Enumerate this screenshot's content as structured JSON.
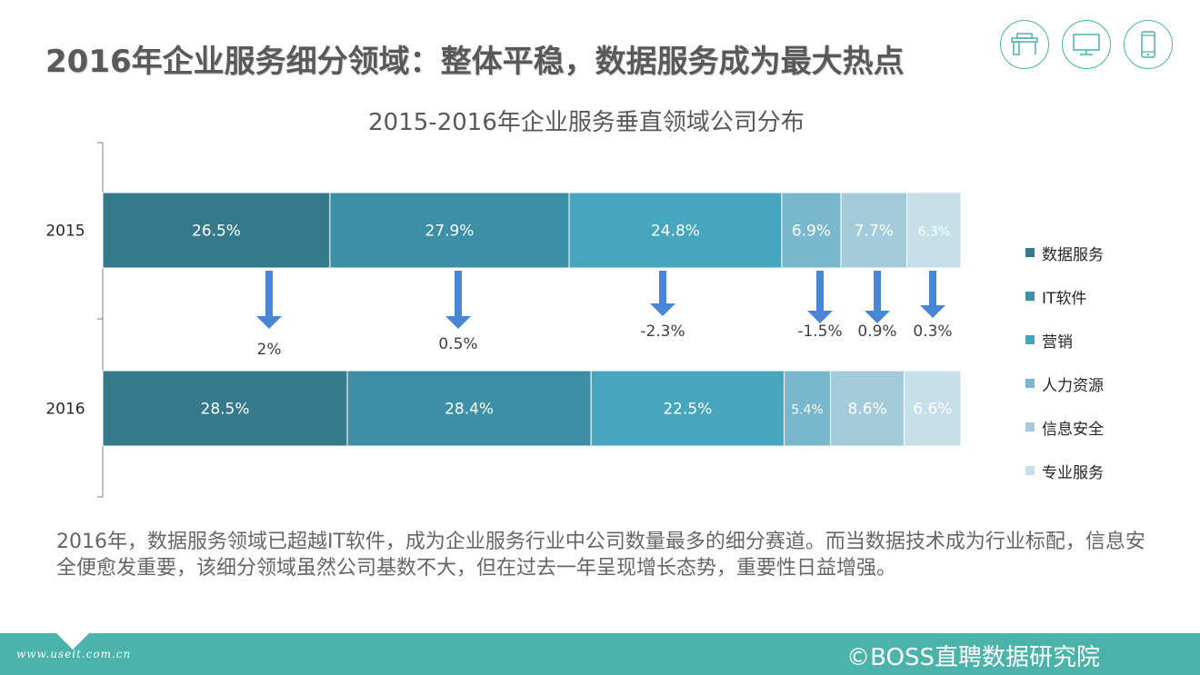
{
  "page": {
    "title": "2016年企业服务细分领域：整体平稳，数据服务成为最大热点",
    "summary": "2016年，数据服务领域已超越IT软件，成为企业服务行业中公司数量最多的细分赛道。而当数据技术成为行业标配，信息安全便愈发重要，该细分领域虽然公司基数不大，但在过去一年呈现增长态势，重要性日益增强。",
    "footer_source": "©BOSS直聘数据研究院",
    "watermark": "www.useit.com.cn",
    "header_icons": [
      "desk-icon",
      "monitor-icon",
      "phone-icon"
    ],
    "accent_color": "#4bb3aa"
  },
  "chart_data": {
    "type": "bar",
    "orientation": "horizontal",
    "stacked": true,
    "title": "2015-2016年企业服务垂直领域公司分布",
    "categories": [
      "2015",
      "2016"
    ],
    "series": [
      {
        "name": "数据服务",
        "values": [
          26.5,
          28.5
        ],
        "labels": [
          "26.5%",
          "28.5%"
        ],
        "color": "#347a8a"
      },
      {
        "name": "IT软件",
        "values": [
          27.9,
          28.4
        ],
        "labels": [
          "27.9%",
          "28.4%"
        ],
        "color": "#3d8fa6"
      },
      {
        "name": "营销",
        "values": [
          24.8,
          22.5
        ],
        "labels": [
          "24.8%",
          "22.5%"
        ],
        "color": "#46a6bd"
      },
      {
        "name": "人力资源",
        "values": [
          6.9,
          5.4
        ],
        "labels": [
          "6.9%",
          "5.4%"
        ],
        "color": "#78b7cc"
      },
      {
        "name": "信息安全",
        "values": [
          7.7,
          8.6
        ],
        "labels": [
          "7.7%",
          "8.6%"
        ],
        "color": "#a3cbd9"
      },
      {
        "name": "专业服务",
        "values": [
          6.3,
          6.6
        ],
        "labels": [
          "6.3%",
          "6.6%"
        ],
        "color": "#c5e0e9"
      }
    ],
    "changes": [
      "2%",
      "0.5%",
      "-2.3%",
      "-1.5%",
      "0.9%",
      "0.3%"
    ],
    "change_arrow_color": "#4a86d6",
    "xlim": [
      0,
      100
    ],
    "legend_position": "right",
    "grid": false
  }
}
